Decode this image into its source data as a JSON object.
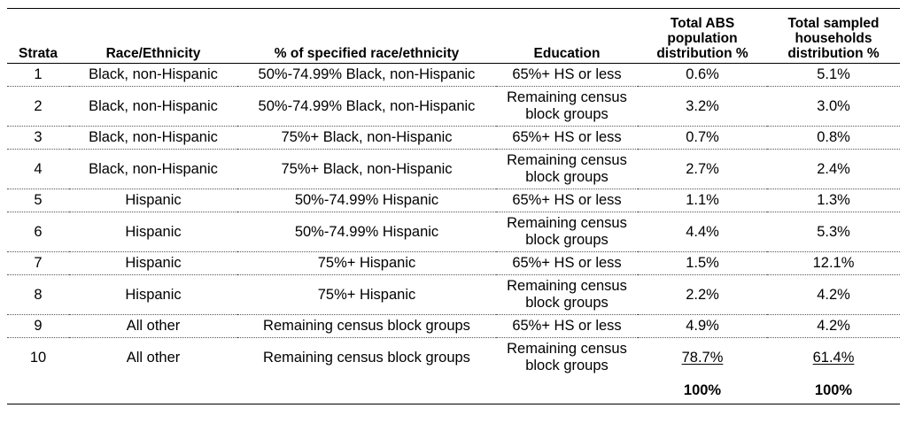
{
  "headers": {
    "strata": "Strata",
    "race": "Race/Ethnicity",
    "pct": "% of specified race/ethnicity",
    "education": "Education",
    "abs_line1": "Total ABS",
    "abs_line2": "population",
    "abs_line3": "distribution %",
    "hh_line1": "Total sampled",
    "hh_line2": "households",
    "hh_line3": "distribution %"
  },
  "rows": [
    {
      "strata": "1",
      "race": "Black, non-Hispanic",
      "pct": "50%-74.99% Black, non-Hispanic",
      "edu1": "65%+ HS or less",
      "edu2": "",
      "abs": "0.6%",
      "hh": "5.1%"
    },
    {
      "strata": "2",
      "race": "Black, non-Hispanic",
      "pct": "50%-74.99% Black, non-Hispanic",
      "edu1": "Remaining census",
      "edu2": "block groups",
      "abs": "3.2%",
      "hh": "3.0%"
    },
    {
      "strata": "3",
      "race": "Black, non-Hispanic",
      "pct": "75%+ Black, non-Hispanic",
      "edu1": "65%+ HS or less",
      "edu2": "",
      "abs": "0.7%",
      "hh": "0.8%"
    },
    {
      "strata": "4",
      "race": "Black, non-Hispanic",
      "pct": "75%+ Black, non-Hispanic",
      "edu1": "Remaining census",
      "edu2": "block groups",
      "abs": "2.7%",
      "hh": "2.4%"
    },
    {
      "strata": "5",
      "race": "Hispanic",
      "pct": "50%-74.99% Hispanic",
      "edu1": "65%+ HS or less",
      "edu2": "",
      "abs": "1.1%",
      "hh": "1.3%"
    },
    {
      "strata": "6",
      "race": "Hispanic",
      "pct": "50%-74.99% Hispanic",
      "edu1": "Remaining census",
      "edu2": "block groups",
      "abs": "4.4%",
      "hh": "5.3%"
    },
    {
      "strata": "7",
      "race": "Hispanic",
      "pct": "75%+ Hispanic",
      "edu1": "65%+ HS or less",
      "edu2": "",
      "abs": "1.5%",
      "hh": "12.1%"
    },
    {
      "strata": "8",
      "race": "Hispanic",
      "pct": "75%+ Hispanic",
      "edu1": "Remaining census",
      "edu2": "block groups",
      "abs": "2.2%",
      "hh": "4.2%"
    },
    {
      "strata": "9",
      "race": "All other",
      "pct": "Remaining census block groups",
      "edu1": "65%+ HS or less",
      "edu2": "",
      "abs": "4.9%",
      "hh": "4.2%"
    },
    {
      "strata": "10",
      "race": "All other",
      "pct": "Remaining census block groups",
      "edu1": "Remaining census",
      "edu2": "block groups",
      "abs": "78.7%",
      "hh": "61.4%"
    }
  ],
  "totals": {
    "abs": "100%",
    "hh": "100%"
  }
}
